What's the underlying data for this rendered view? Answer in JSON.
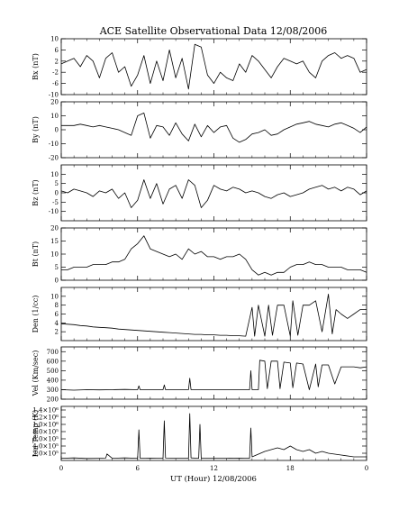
{
  "title": "ACE Satellite Observational Data   12/08/2006",
  "x_axis": {
    "label": "UT (Hour)  12/08/2006",
    "tick_labels": [
      "0",
      "6",
      "12",
      "18",
      "0"
    ],
    "tick_hours": [
      0,
      6,
      12,
      18,
      24
    ],
    "range": [
      0,
      24
    ]
  },
  "chart_data": [
    {
      "type": "line",
      "ylabel": "Bx (nT)",
      "ylim": [
        -10,
        10
      ],
      "yticks": [
        -10,
        -6,
        -2,
        2,
        6,
        10
      ],
      "ytick_labels": [
        "-10",
        "-6",
        "-2",
        "2",
        "6",
        "10"
      ],
      "x_hours": [
        0,
        0.5,
        1,
        1.5,
        2,
        2.5,
        3,
        3.5,
        4,
        4.5,
        5,
        5.5,
        6,
        6.5,
        7,
        7.5,
        8,
        8.5,
        9,
        9.5,
        10,
        10.5,
        11,
        11.5,
        12,
        12.5,
        13,
        13.5,
        14,
        14.5,
        15,
        15.5,
        16,
        16.5,
        17,
        17.5,
        18,
        18.5,
        19,
        19.5,
        20,
        20.5,
        21,
        21.5,
        22,
        22.5,
        23,
        23.5,
        24
      ],
      "values": [
        1,
        2,
        3,
        0,
        4,
        2,
        -4,
        3,
        5,
        -2,
        0,
        -7,
        -3,
        4,
        -6,
        2,
        -5,
        6,
        -4,
        3,
        -8,
        8,
        7,
        -3,
        -6,
        -2,
        -4,
        -5,
        1,
        -2,
        4,
        2,
        -1,
        -4,
        0,
        3,
        2,
        1,
        2,
        -2,
        -4,
        2,
        4,
        5,
        3,
        4,
        3,
        -2,
        -1
      ]
    },
    {
      "type": "line",
      "ylabel": "By (nT)",
      "ylim": [
        -20,
        20
      ],
      "yticks": [
        -20,
        -10,
        0,
        10,
        20
      ],
      "ytick_labels": [
        "-20",
        "-10",
        "0",
        "10",
        "20"
      ],
      "x_hours": [
        0,
        0.5,
        1,
        1.5,
        2,
        2.5,
        3,
        3.5,
        4,
        4.5,
        5,
        5.5,
        6,
        6.5,
        7,
        7.5,
        8,
        8.5,
        9,
        9.5,
        10,
        10.5,
        11,
        11.5,
        12,
        12.5,
        13,
        13.5,
        14,
        14.5,
        15,
        15.5,
        16,
        16.5,
        17,
        17.5,
        18,
        18.5,
        19,
        19.5,
        20,
        20.5,
        21,
        21.5,
        22,
        22.5,
        23,
        23.5,
        24
      ],
      "values": [
        3,
        3,
        3,
        4,
        3,
        2,
        3,
        2,
        1,
        0,
        -2,
        -4,
        10,
        12,
        -6,
        3,
        2,
        -4,
        5,
        -3,
        -8,
        4,
        -5,
        3,
        -2,
        2,
        3,
        -6,
        -9,
        -7,
        -3,
        -2,
        0,
        -4,
        -3,
        0,
        2,
        4,
        5,
        6,
        4,
        3,
        2,
        4,
        5,
        3,
        1,
        -2,
        2
      ]
    },
    {
      "type": "line",
      "ylabel": "Bz (nT)",
      "ylim": [
        -15,
        15
      ],
      "yticks": [
        -10,
        -5,
        0,
        5,
        10
      ],
      "ytick_labels": [
        "-10",
        "-5",
        "0",
        "5",
        "10"
      ],
      "x_hours": [
        0,
        0.5,
        1,
        1.5,
        2,
        2.5,
        3,
        3.5,
        4,
        4.5,
        5,
        5.5,
        6,
        6.5,
        7,
        7.5,
        8,
        8.5,
        9,
        9.5,
        10,
        10.5,
        11,
        11.5,
        12,
        12.5,
        13,
        13.5,
        14,
        14.5,
        15,
        15.5,
        16,
        16.5,
        17,
        17.5,
        18,
        18.5,
        19,
        19.5,
        20,
        20.5,
        21,
        21.5,
        22,
        22.5,
        23,
        23.5,
        24
      ],
      "values": [
        1,
        0,
        2,
        1,
        0,
        -2,
        1,
        0,
        2,
        -3,
        0,
        -8,
        -4,
        7,
        -3,
        5,
        -6,
        2,
        4,
        -3,
        7,
        4,
        -8,
        -4,
        4,
        2,
        1,
        3,
        2,
        0,
        1,
        0,
        -2,
        -3,
        -1,
        0,
        -2,
        -1,
        0,
        2,
        3,
        4,
        2,
        3,
        1,
        3,
        2,
        -1,
        1
      ]
    },
    {
      "type": "line",
      "ylabel": "Bt (nT)",
      "ylim": [
        0,
        20
      ],
      "yticks": [
        0,
        5,
        10,
        15,
        20
      ],
      "ytick_labels": [
        "0",
        "5",
        "10",
        "15",
        "20"
      ],
      "x_hours": [
        0,
        0.5,
        1,
        1.5,
        2,
        2.5,
        3,
        3.5,
        4,
        4.5,
        5,
        5.5,
        6,
        6.5,
        7,
        7.5,
        8,
        8.5,
        9,
        9.5,
        10,
        10.5,
        11,
        11.5,
        12,
        12.5,
        13,
        13.5,
        14,
        14.5,
        15,
        15.5,
        16,
        16.5,
        17,
        17.5,
        18,
        18.5,
        19,
        19.5,
        20,
        20.5,
        21,
        21.5,
        22,
        22.5,
        23,
        23.5,
        24
      ],
      "values": [
        4,
        4,
        5,
        5,
        5,
        6,
        6,
        6,
        7,
        7,
        8,
        12,
        14,
        17,
        12,
        11,
        10,
        9,
        10,
        8,
        12,
        10,
        11,
        9,
        9,
        8,
        9,
        9,
        10,
        8,
        4,
        2,
        3,
        2,
        3,
        3,
        5,
        6,
        6,
        7,
        6,
        6,
        5,
        5,
        5,
        4,
        4,
        4,
        3
      ]
    },
    {
      "type": "line",
      "ylabel": "Den (1/cc)",
      "ylim": [
        0,
        12
      ],
      "yticks": [
        2,
        4,
        6,
        8,
        10
      ],
      "ytick_labels": [
        "2",
        "4",
        "6",
        "8",
        "10"
      ],
      "x_hours": [
        0,
        0.5,
        1,
        1.5,
        2,
        2.5,
        3,
        3.5,
        4,
        4.5,
        5,
        5.5,
        6,
        6.5,
        7,
        7.5,
        8,
        8.5,
        9,
        9.5,
        10,
        10.5,
        11,
        11.5,
        12,
        12.5,
        13,
        13.5,
        14,
        14.5,
        15,
        15.2,
        15.5,
        16,
        16.3,
        16.6,
        17,
        17.5,
        18,
        18.2,
        18.6,
        19,
        19.5,
        20,
        20.5,
        21,
        21.3,
        21.6,
        22,
        22.5,
        23,
        23.5,
        24
      ],
      "values": [
        3.8,
        3.7,
        3.6,
        3.4,
        3.3,
        3.1,
        3.0,
        2.9,
        2.8,
        2.6,
        2.5,
        2.4,
        2.3,
        2.2,
        2.1,
        2.0,
        1.9,
        1.8,
        1.7,
        1.6,
        1.5,
        1.4,
        1.4,
        1.3,
        1.3,
        1.2,
        1.2,
        1.1,
        1.1,
        1.0,
        7.5,
        1.0,
        8,
        1.0,
        8,
        1.2,
        8,
        8,
        1.0,
        9,
        1.2,
        8,
        8,
        9,
        2,
        10.5,
        1.5,
        7,
        6,
        5,
        6,
        7,
        7
      ]
    },
    {
      "type": "line",
      "ylabel": "Vel (Km/sec)",
      "ylim": [
        200,
        750
      ],
      "yticks": [
        200,
        300,
        400,
        500,
        600,
        700
      ],
      "ytick_labels": [
        "200",
        "300",
        "400",
        "500",
        "600",
        "700"
      ],
      "x_hours": [
        0,
        1,
        2,
        3,
        4,
        5,
        6,
        6.1,
        6.2,
        7,
        8,
        8.1,
        8.2,
        9,
        10,
        10.1,
        10.2,
        11,
        12,
        13,
        14,
        14.8,
        14.9,
        15,
        15.5,
        15.6,
        16,
        16.2,
        16.5,
        17,
        17.2,
        17.5,
        18,
        18.2,
        18.5,
        19,
        19.5,
        20,
        20.2,
        20.5,
        21,
        21.5,
        22,
        22.5,
        23,
        23.5,
        24
      ],
      "values": [
        300,
        295,
        300,
        298,
        300,
        302,
        300,
        340,
        300,
        300,
        300,
        350,
        300,
        300,
        300,
        420,
        300,
        300,
        300,
        300,
        300,
        300,
        500,
        300,
        300,
        610,
        600,
        310,
        600,
        600,
        310,
        590,
        580,
        320,
        580,
        570,
        300,
        570,
        330,
        560,
        560,
        360,
        540,
        540,
        540,
        530,
        540
      ]
    },
    {
      "type": "line",
      "ylabel": "Ion Temp (K)",
      "ylim": [
        0,
        1500000
      ],
      "yticks": [
        200000,
        400000,
        600000,
        800000,
        1000000,
        1200000,
        1400000
      ],
      "ytick_labels": [
        "2.0×10⁵",
        "4.0×10⁵",
        "6.0×10⁵",
        "8.0×10⁵",
        "1.0×10⁶",
        "1.2×10⁶",
        "1.4×10⁶"
      ],
      "x_hours": [
        0,
        1,
        2,
        3,
        3.5,
        3.6,
        4,
        5,
        6,
        6.1,
        6.2,
        7,
        8,
        8.1,
        8.2,
        9,
        10,
        10.1,
        10.2,
        10.8,
        10.9,
        11,
        12,
        13,
        14,
        14.8,
        14.9,
        15,
        16,
        17,
        17.5,
        18,
        18.5,
        19,
        19.5,
        20,
        20.5,
        21,
        22,
        23,
        24
      ],
      "values": [
        60000,
        70000,
        55000,
        60000,
        65000,
        180000,
        60000,
        70000,
        60000,
        850000,
        60000,
        65000,
        60000,
        1100000,
        65000,
        60000,
        60000,
        1300000,
        70000,
        60000,
        1000000,
        60000,
        60000,
        60000,
        65000,
        60000,
        900000,
        100000,
        250000,
        350000,
        300000,
        400000,
        300000,
        250000,
        300000,
        200000,
        250000,
        200000,
        150000,
        100000,
        100000
      ]
    }
  ]
}
